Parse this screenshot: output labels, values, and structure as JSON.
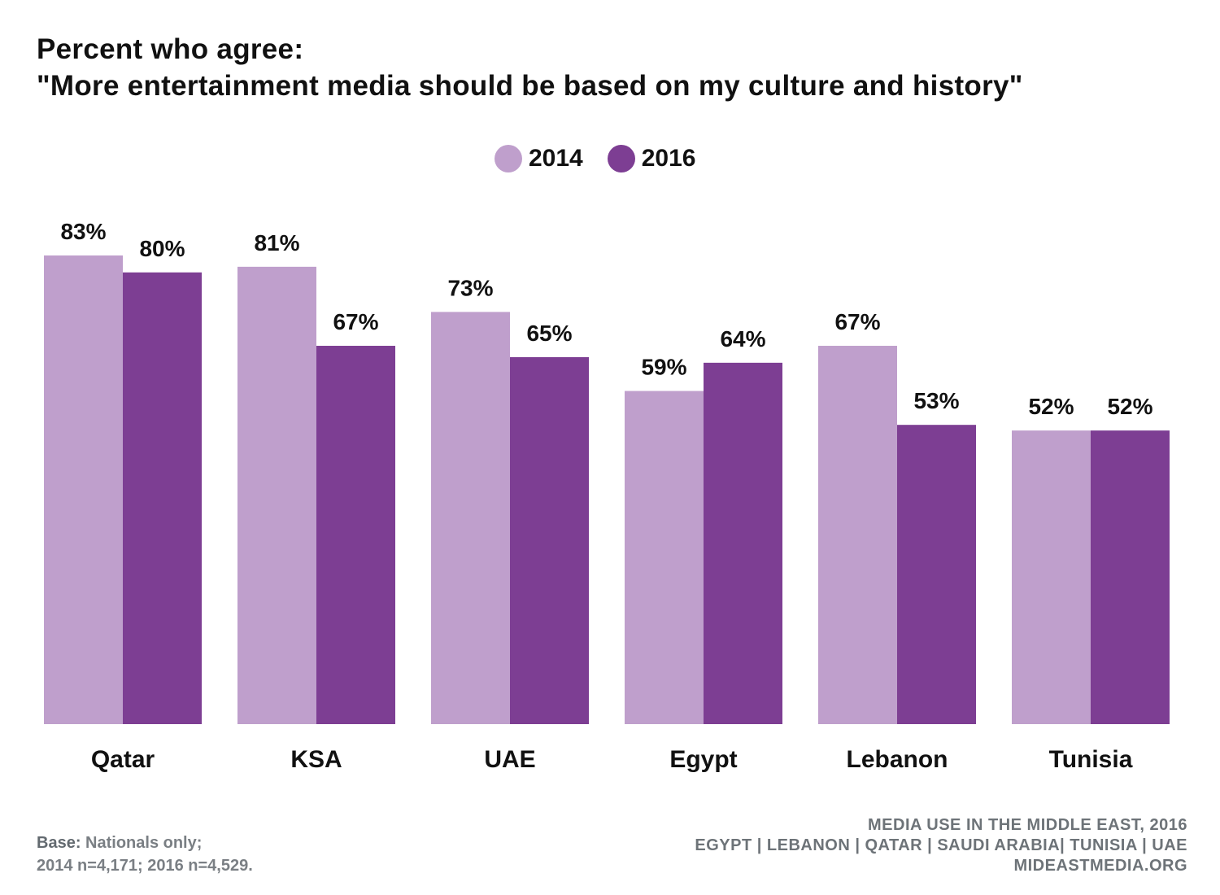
{
  "title": {
    "line1": "Percent who agree:",
    "line2": "\"More entertainment media should be based on my culture and history\""
  },
  "legend": [
    {
      "label": "2014",
      "color": "#bf9fcc"
    },
    {
      "label": "2016",
      "color": "#7d3e93"
    }
  ],
  "chart_data": {
    "type": "bar",
    "categories": [
      "Qatar",
      "KSA",
      "UAE",
      "Egypt",
      "Lebanon",
      "Tunisia"
    ],
    "series": [
      {
        "name": "2014",
        "values": [
          83,
          81,
          73,
          59,
          67,
          52
        ],
        "labels": [
          "83%",
          "81%",
          "73%",
          "59%",
          "67%",
          "52%"
        ],
        "color": "#bf9fcc"
      },
      {
        "name": "2016",
        "values": [
          80,
          67,
          65,
          64,
          53,
          52
        ],
        "labels": [
          "80%",
          "67%",
          "65%",
          "64%",
          "53%",
          "52%"
        ],
        "color": "#7d3e93"
      }
    ],
    "title": "Percent who agree: \"More entertainment media should be based on my culture and history\"",
    "xlabel": "",
    "ylabel": "",
    "ylim": [
      0,
      100
    ],
    "grid": false,
    "legend_position": "top-center"
  },
  "footer": {
    "base_key": "Base:",
    "base_text": " Nationals only;",
    "base_line2": "2014 n=4,171; 2016 n=4,529.",
    "source_line1": "MEDIA USE IN THE MIDDLE EAST, 2016",
    "source_line2": "EGYPT | LEBANON | QATAR | SAUDI ARABIA| TUNISIA | UAE",
    "source_line3": "MIDEASTMEDIA.ORG"
  }
}
